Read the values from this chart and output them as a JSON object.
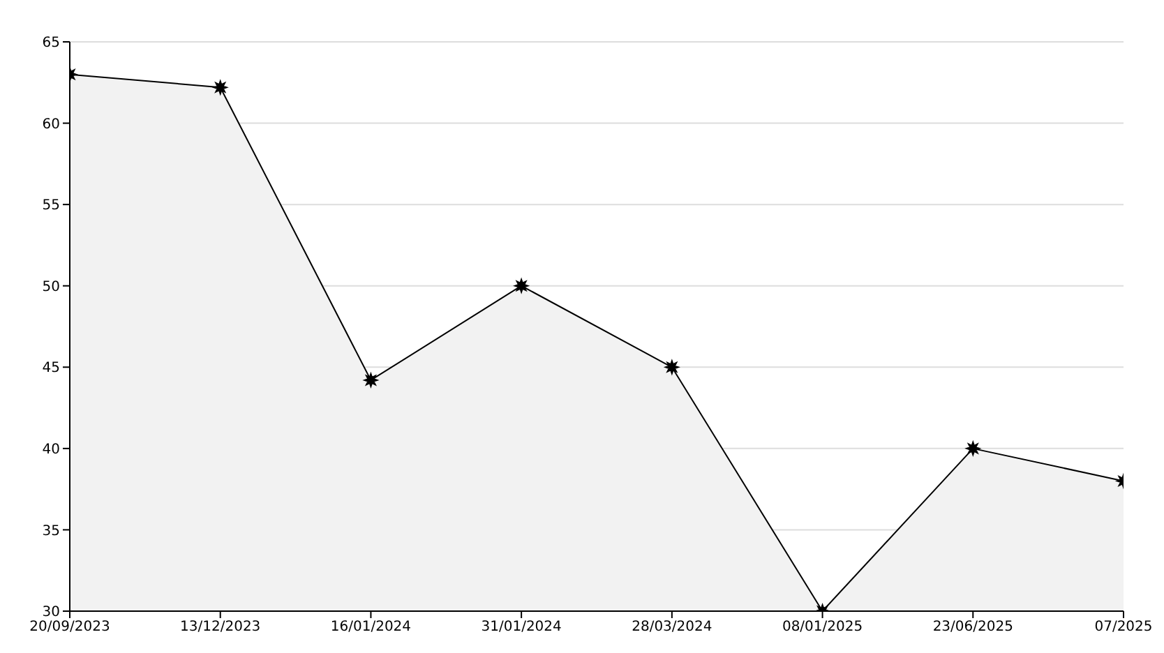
{
  "chart_data": {
    "type": "area",
    "categories": [
      "20/09/2023",
      "13/12/2023",
      "16/01/2024",
      "31/01/2024",
      "28/03/2024",
      "08/01/2025",
      "23/06/2025",
      "07/2025"
    ],
    "series": [
      {
        "color": "#f2f2f2",
        "values": [
          63,
          62.2,
          44.2,
          50,
          45,
          30,
          40,
          38
        ]
      }
    ],
    "ylim": [
      30,
      65
    ],
    "yticks": [
      30,
      35,
      40,
      45,
      50,
      55,
      60,
      65
    ],
    "grid": "y",
    "marker": "star",
    "line_style": "solid",
    "legend": false
  }
}
